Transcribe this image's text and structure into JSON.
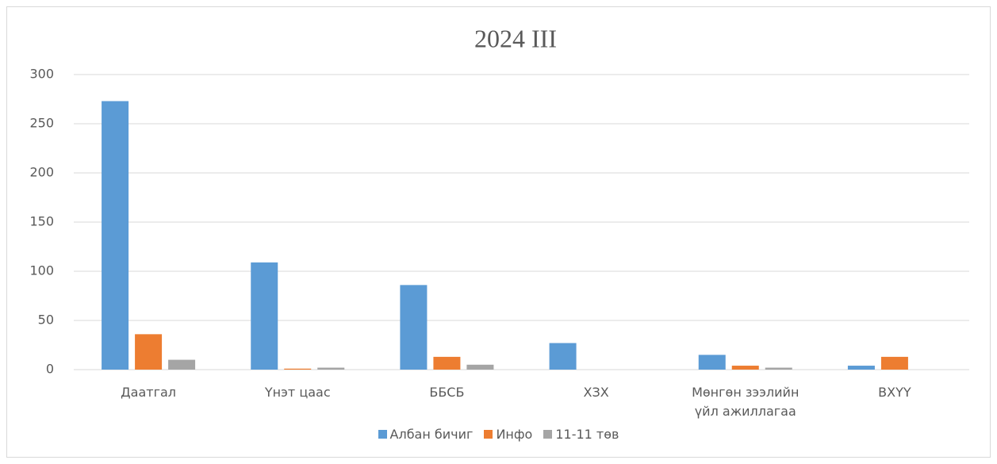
{
  "chart_data": {
    "type": "bar",
    "title": "2024 III",
    "categories": [
      "Даатгал",
      "Үнэт цаас",
      "ББСБ",
      "ХЗХ",
      "Мөнгөн зээлийн үйл ажиллагаа",
      "ВХҮҮ"
    ],
    "series": [
      {
        "name": "Албан бичиг",
        "color": "#5b9bd5",
        "values": [
          273,
          109,
          86,
          27,
          15,
          4
        ]
      },
      {
        "name": "Инфо",
        "color": "#ed7d31",
        "values": [
          36,
          1,
          13,
          0,
          4,
          13
        ]
      },
      {
        "name": "11-11 төв",
        "color": "#a5a5a5",
        "values": [
          10,
          2,
          5,
          0,
          2,
          0
        ]
      }
    ],
    "ylim": [
      0,
      300
    ],
    "yticks": [
      0,
      50,
      100,
      150,
      200,
      250,
      300
    ],
    "grid": true,
    "legend": "bottom"
  }
}
